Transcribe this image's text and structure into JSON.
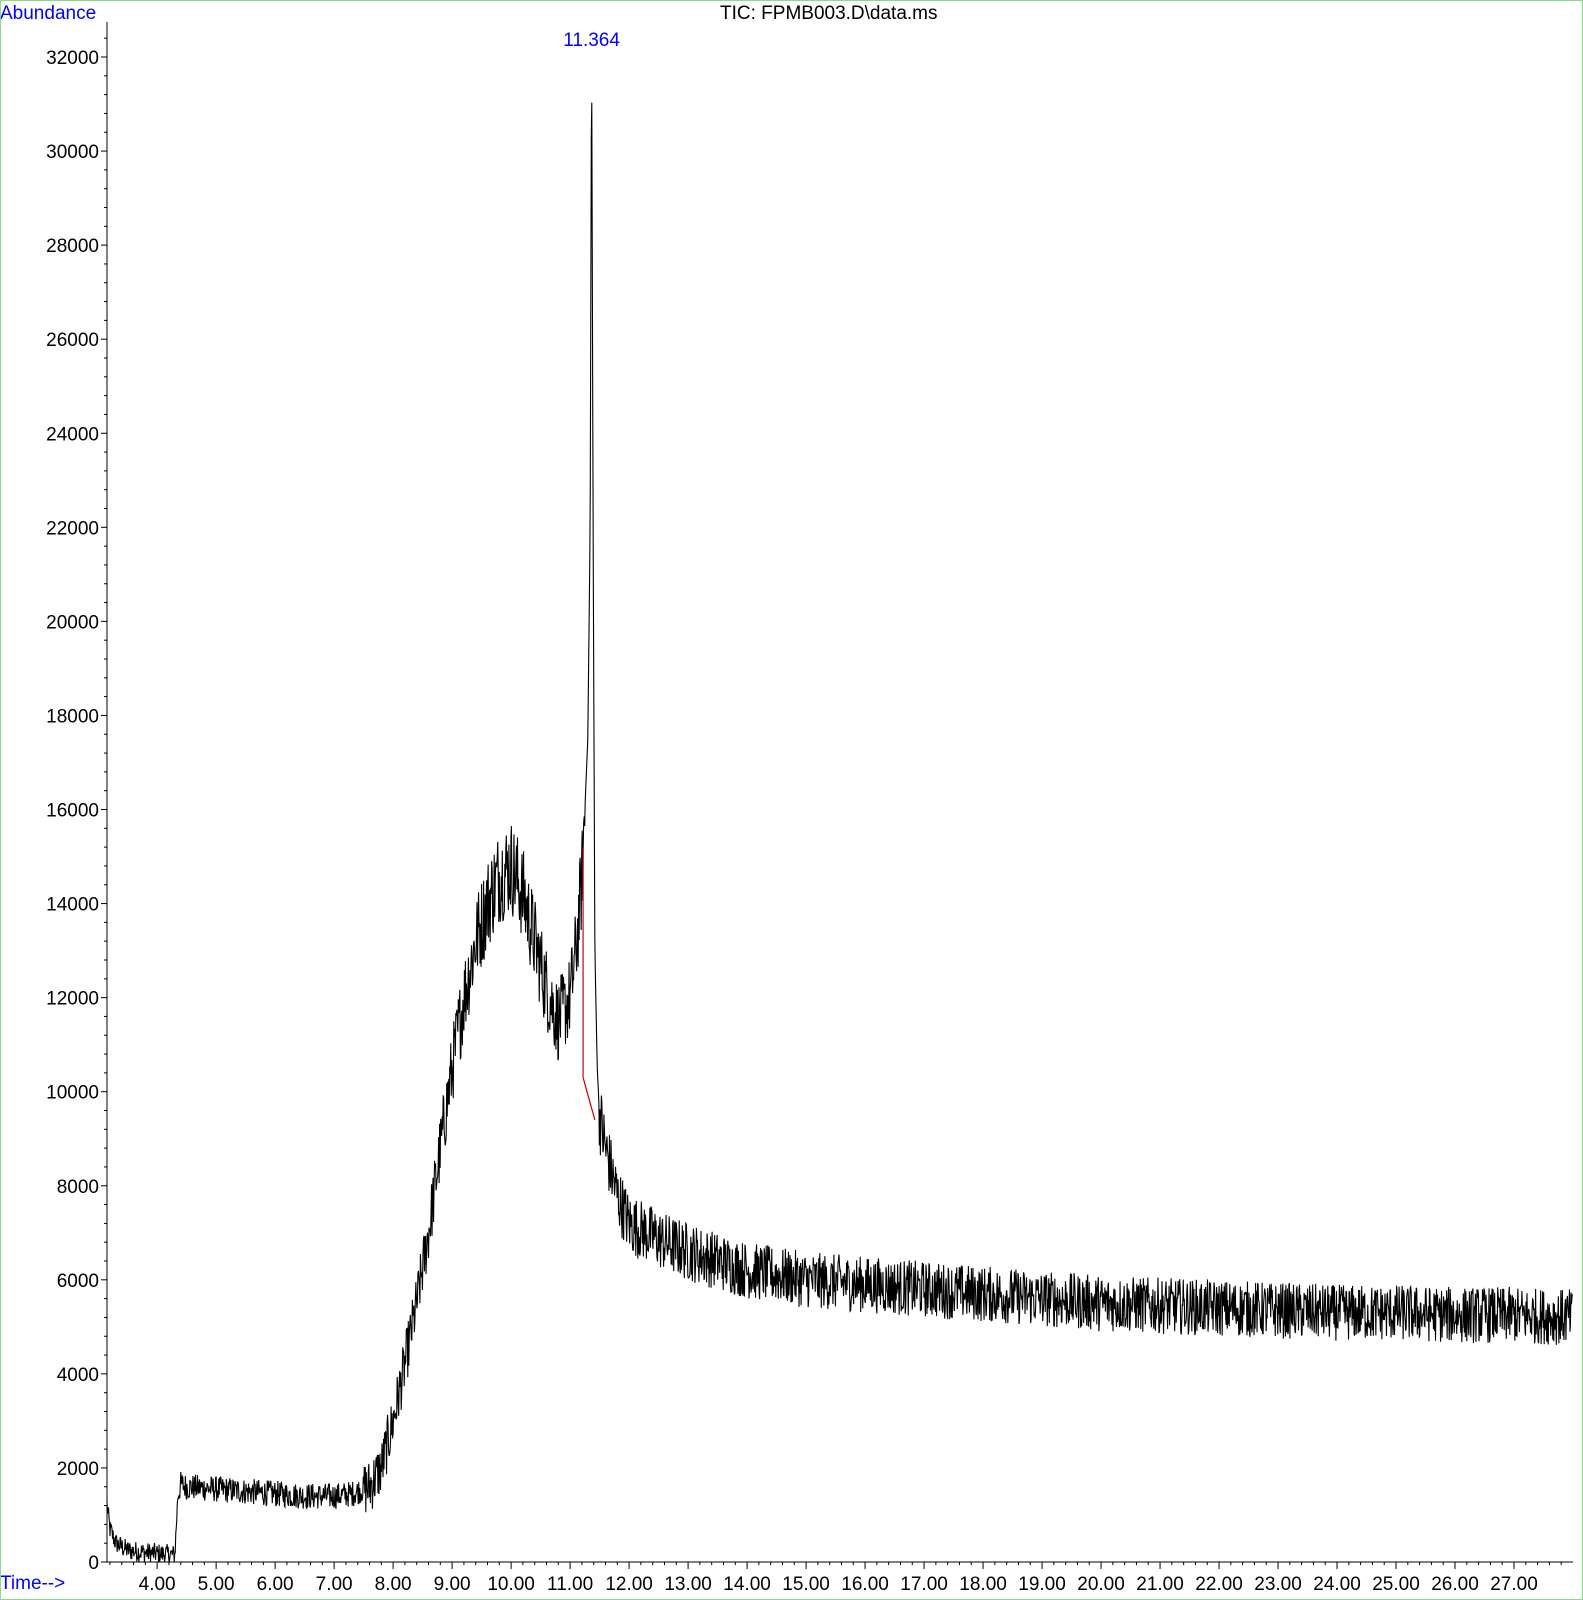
{
  "chart_data": {
    "type": "line",
    "title": "TIC: FPMB003.D\\data.ms",
    "ylabel": "Abundance",
    "xlabel": "Time-->",
    "xlim": [
      3.15,
      28.0
    ],
    "ylim": [
      0,
      32500
    ],
    "x_ticks": [
      4,
      5,
      6,
      7,
      8,
      9,
      10,
      11,
      12,
      13,
      14,
      15,
      16,
      17,
      18,
      19,
      20,
      21,
      22,
      23,
      24,
      25,
      26,
      27
    ],
    "x_tick_labels": [
      "4.00",
      "5.00",
      "6.00",
      "7.00",
      "8.00",
      "9.00",
      "10.00",
      "11.00",
      "12.00",
      "13.00",
      "14.00",
      "15.00",
      "16.00",
      "17.00",
      "18.00",
      "19.00",
      "20.00",
      "21.00",
      "22.00",
      "23.00",
      "24.00",
      "25.00",
      "26.00",
      "27.00"
    ],
    "y_ticks": [
      0,
      2000,
      4000,
      6000,
      8000,
      10000,
      12000,
      14000,
      16000,
      18000,
      20000,
      22000,
      24000,
      26000,
      28000,
      30000,
      32000
    ],
    "y_tick_labels": [
      "0",
      "2000",
      "4000",
      "6000",
      "8000",
      "10000",
      "12000",
      "14000",
      "16000",
      "18000",
      "20000",
      "22000",
      "24000",
      "26000",
      "28000",
      "30000",
      "32000"
    ],
    "grid": false,
    "series": [
      {
        "color": "#000000",
        "x": [
          3.15,
          3.2,
          3.3,
          3.5,
          3.8,
          4.0,
          4.3,
          4.35,
          4.4,
          4.5,
          5.0,
          5.5,
          6.0,
          6.5,
          7.0,
          7.3,
          7.6,
          7.8,
          8.0,
          8.2,
          8.4,
          8.6,
          8.8,
          9.0,
          9.2,
          9.4,
          9.6,
          9.8,
          10.0,
          10.2,
          10.4,
          10.6,
          10.8,
          11.0,
          11.1,
          11.2,
          11.25,
          11.3,
          11.34,
          11.364,
          11.39,
          11.42,
          11.46,
          11.5,
          11.6,
          11.8,
          12.0,
          12.3,
          12.6,
          13.0,
          13.5,
          14.0,
          15.0,
          16.0,
          17.0,
          18.0,
          19.0,
          20.0,
          21.0,
          22.0,
          23.0,
          24.0,
          25.0,
          26.0,
          27.0,
          28.0
        ],
        "y": [
          1200,
          700,
          400,
          250,
          200,
          180,
          150,
          1400,
          1650,
          1600,
          1550,
          1500,
          1450,
          1400,
          1400,
          1450,
          1600,
          2000,
          3000,
          4200,
          5500,
          7000,
          8800,
          10500,
          12000,
          13200,
          14000,
          14600,
          14800,
          14200,
          13200,
          12200,
          11500,
          12000,
          13000,
          14500,
          16000,
          17500,
          22000,
          32500,
          22000,
          13000,
          10500,
          9500,
          8800,
          7800,
          7200,
          7000,
          6800,
          6600,
          6400,
          6200,
          6000,
          5900,
          5800,
          5700,
          5600,
          5500,
          5450,
          5400,
          5350,
          5300,
          5300,
          5250,
          5250,
          5200
        ],
        "noise": 600
      }
    ],
    "baseline": {
      "color": "#cc0000",
      "x": [
        11.22,
        11.22,
        11.42
      ],
      "y": [
        15200,
        10300,
        9400
      ]
    },
    "annotations": [
      {
        "text": "11.364",
        "x": 11.364,
        "color": "#0000ff"
      }
    ]
  }
}
